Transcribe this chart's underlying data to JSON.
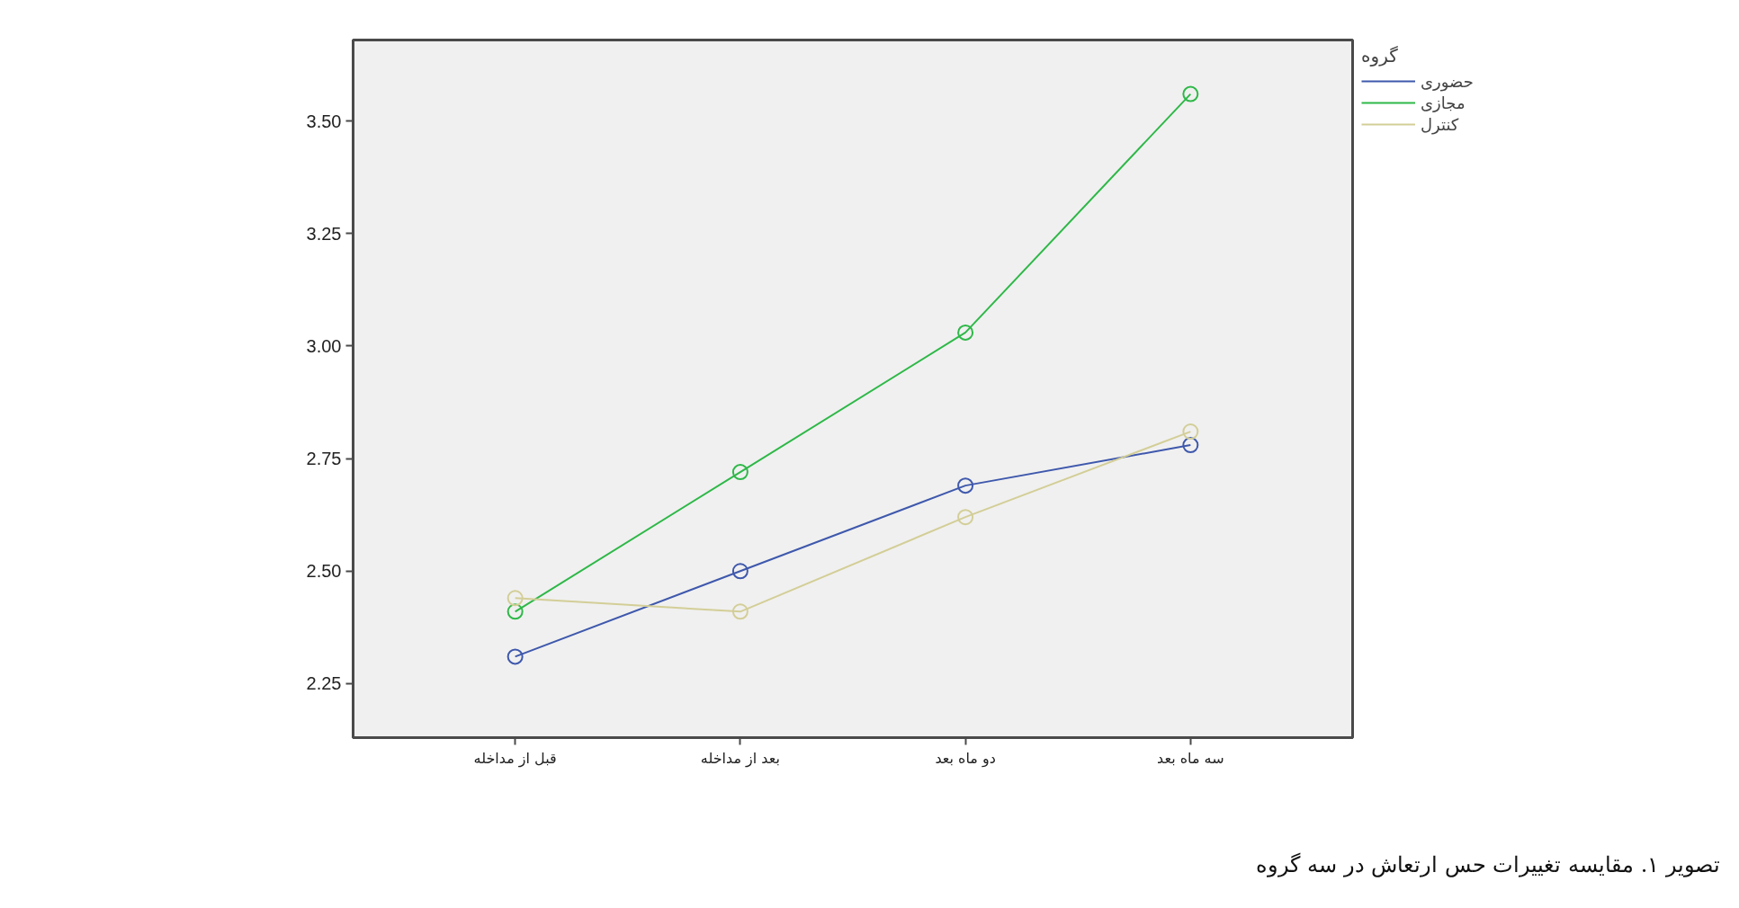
{
  "chart_data": {
    "type": "line",
    "categories": [
      "قبل از مداخله",
      "بعد از مداخله",
      "دو ماه بعد",
      "سه ماه بعد"
    ],
    "series": [
      {
        "name": "حضوری",
        "color": "#3e58ac",
        "values": [
          2.31,
          2.5,
          2.69,
          2.78
        ]
      },
      {
        "name": "مجازی",
        "color": "#2eb848",
        "values": [
          2.41,
          2.72,
          3.03,
          3.56
        ]
      },
      {
        "name": "کنترل",
        "color": "#d3ce97",
        "values": [
          2.44,
          2.41,
          2.62,
          2.81
        ]
      }
    ],
    "ylim": [
      2.13,
      3.68
    ],
    "yticks": [
      {
        "value": 2.25,
        "label": "2.25"
      },
      {
        "value": 2.5,
        "label": "2.50"
      },
      {
        "value": 2.75,
        "label": "2.75"
      },
      {
        "value": 3.0,
        "label": "3.00"
      },
      {
        "value": 3.25,
        "label": "3.25"
      },
      {
        "value": 3.5,
        "label": "3.50"
      }
    ],
    "legend_title": "گروه",
    "legend": "top right",
    "marker": "circle",
    "line_style": "solid",
    "grid": false,
    "annotations": [
      "تصویر ۱. مقایسه تغییرات حس ارتعاش در سه گروه"
    ]
  }
}
